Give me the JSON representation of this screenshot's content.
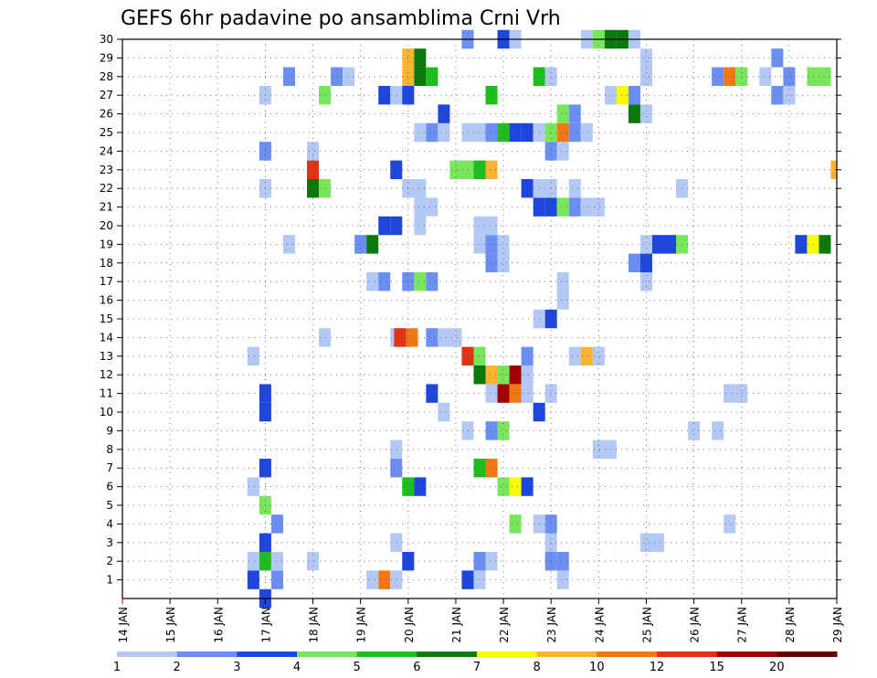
{
  "chart_data": {
    "type": "heatmap",
    "title": "GEFS 6hr padavine po ansamblima Crni Vrh",
    "xlabel": "",
    "ylabel": "",
    "x_range": [
      14,
      29
    ],
    "x_tick_labels": [
      "14 JAN",
      "15 JAN",
      "16 JAN",
      "17 JAN",
      "18 JAN",
      "19 JAN",
      "20 JAN",
      "21 JAN",
      "22 JAN",
      "23 JAN",
      "24 JAN",
      "25 JAN",
      "26 JAN",
      "27 JAN",
      "28 JAN",
      "29 JAN"
    ],
    "y_tick_labels": [
      "1",
      "2",
      "3",
      "4",
      "5",
      "6",
      "7",
      "8",
      "9",
      "10",
      "11",
      "12",
      "13",
      "14",
      "15",
      "16",
      "17",
      "18",
      "19",
      "20",
      "21",
      "22",
      "23",
      "24",
      "25",
      "26",
      "27",
      "28",
      "29",
      "30"
    ],
    "y_range": [
      0,
      30
    ],
    "grid": true,
    "cell_width_days": 0.25,
    "color_levels": [
      {
        "label": "1",
        "color": "#b4c8f5"
      },
      {
        "label": "2",
        "color": "#6a8ff0"
      },
      {
        "label": "3",
        "color": "#1e46dc"
      },
      {
        "label": "4",
        "color": "#78e65a"
      },
      {
        "label": "5",
        "color": "#1ebe1e"
      },
      {
        "label": "6",
        "color": "#0a780a"
      },
      {
        "label": "7",
        "color": "#fafa00"
      },
      {
        "label": "8",
        "color": "#fab432"
      },
      {
        "label": "10",
        "color": "#f07814"
      },
      {
        "label": "12",
        "color": "#e13214"
      },
      {
        "label": "15",
        "color": "#a00000"
      },
      {
        "label": "20",
        "color": "#640000"
      }
    ],
    "cells": [
      [
        17,
        0,
        2
      ],
      [
        16.75,
        1,
        2
      ],
      [
        16.75,
        2,
        0
      ],
      [
        17.25,
        1,
        1
      ],
      [
        19.25,
        1,
        0
      ],
      [
        19.5,
        1,
        8
      ],
      [
        19.75,
        1,
        0
      ],
      [
        21.25,
        1,
        2
      ],
      [
        21.5,
        1,
        0
      ],
      [
        23.25,
        1,
        0
      ],
      [
        17,
        2,
        4
      ],
      [
        17.25,
        2,
        0
      ],
      [
        18,
        2,
        0
      ],
      [
        20,
        2,
        2
      ],
      [
        21.5,
        2,
        1
      ],
      [
        21.75,
        2,
        0
      ],
      [
        23,
        2,
        1
      ],
      [
        23.25,
        2,
        1
      ],
      [
        17,
        3,
        2
      ],
      [
        19.75,
        3,
        0
      ],
      [
        23,
        3,
        0
      ],
      [
        25,
        3,
        0
      ],
      [
        25.25,
        3,
        0
      ],
      [
        17.25,
        4,
        1
      ],
      [
        22.25,
        4,
        3
      ],
      [
        22.75,
        4,
        0
      ],
      [
        23,
        4,
        1
      ],
      [
        26.75,
        4,
        0
      ],
      [
        17,
        5,
        3
      ],
      [
        16.75,
        6,
        0
      ],
      [
        20,
        6,
        4
      ],
      [
        20.25,
        6,
        2
      ],
      [
        22,
        6,
        3
      ],
      [
        22.25,
        6,
        6
      ],
      [
        22.5,
        6,
        2
      ],
      [
        17,
        7,
        2
      ],
      [
        19.75,
        7,
        1
      ],
      [
        21.5,
        7,
        4
      ],
      [
        21.75,
        7,
        8
      ],
      [
        19.75,
        8,
        0
      ],
      [
        24,
        8,
        0
      ],
      [
        24.25,
        8,
        0
      ],
      [
        21.25,
        9,
        0
      ],
      [
        21.75,
        9,
        1
      ],
      [
        22,
        9,
        3
      ],
      [
        26,
        9,
        0
      ],
      [
        26.5,
        9,
        0
      ],
      [
        17,
        10,
        2
      ],
      [
        20.75,
        10,
        0
      ],
      [
        22.75,
        10,
        2
      ],
      [
        17,
        11,
        2
      ],
      [
        20.5,
        11,
        2
      ],
      [
        21.75,
        11,
        0
      ],
      [
        22,
        11,
        10
      ],
      [
        22.25,
        11,
        8
      ],
      [
        22.5,
        11,
        0
      ],
      [
        23,
        11,
        0
      ],
      [
        26.75,
        11,
        0
      ],
      [
        27,
        11,
        0
      ],
      [
        21.5,
        12,
        5
      ],
      [
        21.75,
        12,
        7
      ],
      [
        22,
        12,
        3
      ],
      [
        22.25,
        12,
        10
      ],
      [
        22.5,
        12,
        0
      ],
      [
        16.75,
        13,
        0
      ],
      [
        21.25,
        13,
        9
      ],
      [
        21.5,
        13,
        3
      ],
      [
        22.5,
        13,
        1
      ],
      [
        23.5,
        13,
        0
      ],
      [
        23.75,
        13,
        7
      ],
      [
        24,
        13,
        0
      ],
      [
        18.25,
        14,
        0
      ],
      [
        19.75,
        14,
        0
      ],
      [
        19.83,
        14,
        9
      ],
      [
        20.08,
        14,
        8
      ],
      [
        20.5,
        14,
        1
      ],
      [
        20.75,
        14,
        0
      ],
      [
        21,
        14,
        0
      ],
      [
        22.75,
        15,
        0
      ],
      [
        23,
        15,
        2
      ],
      [
        23.25,
        16,
        0
      ],
      [
        19.25,
        17,
        0
      ],
      [
        19.5,
        17,
        1
      ],
      [
        20,
        17,
        1
      ],
      [
        20.25,
        17,
        3
      ],
      [
        20.5,
        17,
        1
      ],
      [
        23.25,
        17,
        0
      ],
      [
        25,
        17,
        0
      ],
      [
        21.75,
        18,
        1
      ],
      [
        22,
        18,
        0
      ],
      [
        24.75,
        18,
        1
      ],
      [
        25,
        18,
        2
      ],
      [
        17.5,
        19,
        0
      ],
      [
        19,
        19,
        1
      ],
      [
        19.25,
        19,
        5
      ],
      [
        21.5,
        19,
        0
      ],
      [
        21.75,
        19,
        1
      ],
      [
        22,
        19,
        0
      ],
      [
        25,
        19,
        0
      ],
      [
        25.25,
        19,
        2
      ],
      [
        25.5,
        19,
        2
      ],
      [
        25.75,
        19,
        3
      ],
      [
        28.25,
        19,
        2
      ],
      [
        28.5,
        19,
        6
      ],
      [
        28.75,
        19,
        5
      ],
      [
        19.5,
        20,
        2
      ],
      [
        19.75,
        20,
        2
      ],
      [
        20.25,
        20,
        0
      ],
      [
        21.5,
        20,
        0
      ],
      [
        21.75,
        20,
        0
      ],
      [
        20.25,
        21,
        0
      ],
      [
        20.5,
        21,
        0
      ],
      [
        22.75,
        21,
        2
      ],
      [
        23,
        21,
        2
      ],
      [
        23.25,
        21,
        3
      ],
      [
        23.5,
        21,
        1
      ],
      [
        23.75,
        21,
        0
      ],
      [
        24,
        21,
        0
      ],
      [
        17,
        22,
        0
      ],
      [
        18,
        22,
        5
      ],
      [
        18.25,
        22,
        3
      ],
      [
        20,
        22,
        0
      ],
      [
        20.25,
        22,
        0
      ],
      [
        22.5,
        22,
        2
      ],
      [
        22.75,
        22,
        0
      ],
      [
        23,
        22,
        0
      ],
      [
        23.5,
        22,
        0
      ],
      [
        25.75,
        22,
        0
      ],
      [
        18,
        23,
        9
      ],
      [
        19.75,
        23,
        2
      ],
      [
        21,
        23,
        3
      ],
      [
        21.25,
        23,
        3
      ],
      [
        21.5,
        23,
        4
      ],
      [
        21.75,
        23,
        7
      ],
      [
        29,
        23,
        7
      ],
      [
        17,
        24,
        1
      ],
      [
        18,
        24,
        0
      ],
      [
        23,
        24,
        1
      ],
      [
        23.25,
        24,
        0
      ],
      [
        20.25,
        25,
        0
      ],
      [
        20.5,
        25,
        1
      ],
      [
        20.75,
        25,
        0
      ],
      [
        21.25,
        25,
        0
      ],
      [
        21.5,
        25,
        0
      ],
      [
        21.75,
        25,
        1
      ],
      [
        22,
        25,
        4
      ],
      [
        22.25,
        25,
        2
      ],
      [
        22.5,
        25,
        2
      ],
      [
        22.75,
        25,
        0
      ],
      [
        23,
        25,
        3
      ],
      [
        23.25,
        25,
        8
      ],
      [
        23.5,
        25,
        1
      ],
      [
        23.75,
        25,
        0
      ],
      [
        20.75,
        26,
        2
      ],
      [
        23.25,
        26,
        3
      ],
      [
        23.5,
        26,
        1
      ],
      [
        24.75,
        26,
        5
      ],
      [
        25,
        26,
        0
      ],
      [
        17,
        27,
        0
      ],
      [
        18.25,
        27,
        3
      ],
      [
        19.5,
        27,
        2
      ],
      [
        19.75,
        27,
        0
      ],
      [
        20,
        27,
        2
      ],
      [
        21.75,
        27,
        4
      ],
      [
        24.25,
        27,
        0
      ],
      [
        24.5,
        27,
        6
      ],
      [
        24.75,
        27,
        1
      ],
      [
        27.75,
        27,
        1
      ],
      [
        28,
        27,
        0
      ],
      [
        17.5,
        28,
        1
      ],
      [
        18.5,
        28,
        1
      ],
      [
        18.75,
        28,
        0
      ],
      [
        20,
        28,
        7
      ],
      [
        20.25,
        28,
        5
      ],
      [
        20.5,
        28,
        4
      ],
      [
        22.75,
        28,
        4
      ],
      [
        23,
        28,
        0
      ],
      [
        25,
        28,
        0
      ],
      [
        26.5,
        28,
        1
      ],
      [
        26.75,
        28,
        8
      ],
      [
        27,
        28,
        3
      ],
      [
        27.5,
        28,
        0
      ],
      [
        28,
        28,
        1
      ],
      [
        28.5,
        28,
        3
      ],
      [
        28.75,
        28,
        3
      ],
      [
        20,
        29,
        7
      ],
      [
        20.25,
        29,
        5
      ],
      [
        25,
        29,
        0
      ],
      [
        27.75,
        29,
        1
      ],
      [
        21.25,
        30,
        1
      ],
      [
        22,
        30,
        2
      ],
      [
        22.25,
        30,
        0
      ],
      [
        23.75,
        30,
        0
      ],
      [
        24,
        30,
        3
      ],
      [
        24.25,
        30,
        5
      ],
      [
        24.5,
        30,
        5
      ],
      [
        24.75,
        30,
        0
      ]
    ]
  }
}
